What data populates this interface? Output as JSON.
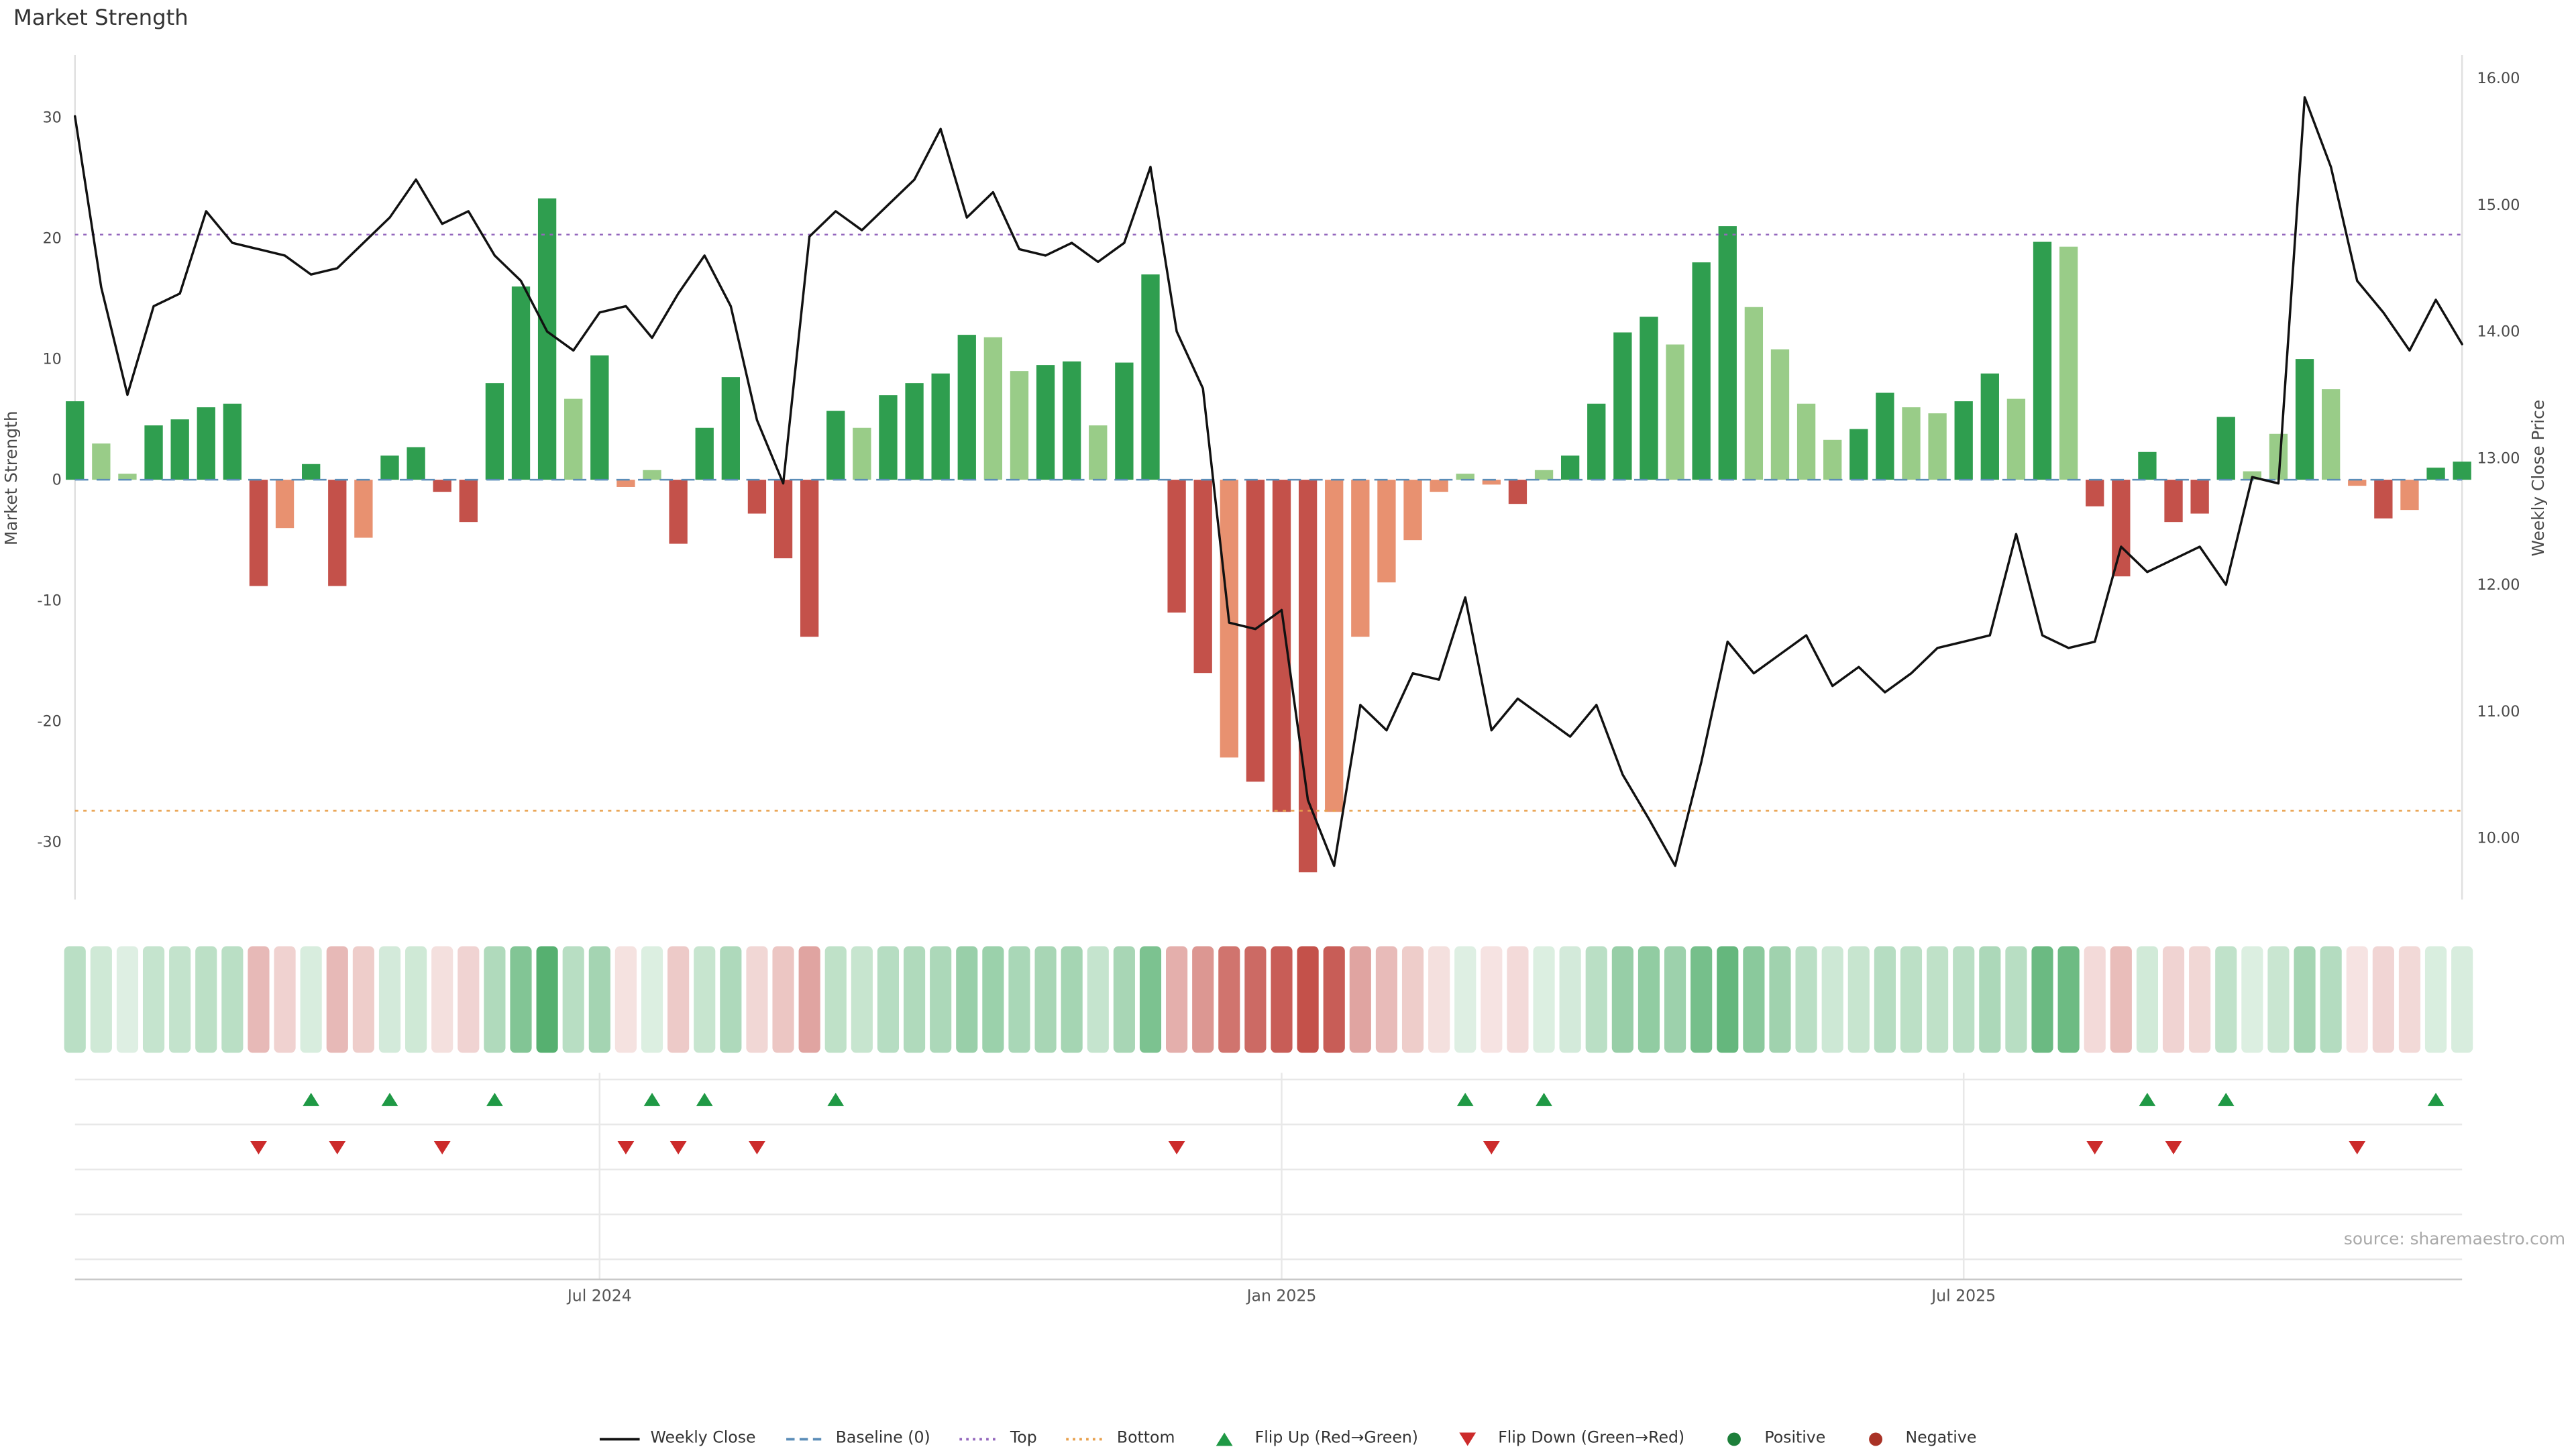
{
  "title": "Market Strength",
  "source_note": "source: sharemaestro.com",
  "axes": {
    "left": {
      "label": "Market Strength",
      "ticks": [
        30,
        20,
        10,
        0,
        -10,
        -20,
        -30
      ],
      "range": [
        -35.2,
        33.2
      ]
    },
    "right": {
      "label": "Weekly Close Price",
      "ticks": [
        "16.00",
        "15.00",
        "14.00",
        "13.00",
        "12.00",
        "11.00",
        "10.00"
      ],
      "range": [
        9.47,
        16.17
      ]
    },
    "x": {
      "weeks": 92,
      "ticks": [
        {
          "index": 20,
          "label": "Jul 2024"
        },
        {
          "index": 46,
          "label": "Jan 2025"
        },
        {
          "index": 72,
          "label": "Jul 2025"
        }
      ]
    }
  },
  "colors": {
    "dark_green": "#2f9e4f",
    "light_green": "#99cc88",
    "dark_red": "#c4514a",
    "light_red": "#e89170",
    "line": "#111111",
    "baseline": "#5b8db8",
    "top": "#9467bd",
    "bottom": "#e8a04c",
    "flip_up": "#1f9945",
    "flip_down": "#cc2b2b",
    "positive_dot": "#1d7f3a",
    "negative_dot": "#a93226",
    "grid": "#e8e8e8",
    "axis_line": "#c9c9c9",
    "axis_text": "#4a4a4a",
    "source_text": "#a9a9a9"
  },
  "legend": [
    {
      "label": "Weekly Close",
      "swatch": "line",
      "color": "#111111"
    },
    {
      "label": "Baseline (0)",
      "swatch": "dashed-line",
      "color": "#5b8db8"
    },
    {
      "label": "Top",
      "swatch": "dotted-line",
      "color": "#9467bd"
    },
    {
      "label": "Bottom",
      "swatch": "dotted-line",
      "color": "#e8a04c"
    },
    {
      "label": "Flip Up (Red→Green)",
      "swatch": "triangle-up",
      "color": "#1f9945"
    },
    {
      "label": "Flip Down (Green→Red)",
      "swatch": "triangle-down",
      "color": "#cc2b2b"
    },
    {
      "label": "Positive",
      "swatch": "circle",
      "color": "#1d7f3a"
    },
    {
      "label": "Negative",
      "swatch": "circle",
      "color": "#a93226"
    }
  ],
  "chart_data": [
    {
      "type": "bar",
      "name": "Market Strength",
      "axis": "left",
      "ylabel": "Market Strength",
      "ylim": [
        -35.2,
        33.2
      ],
      "grid": false,
      "x_tick_labels": [
        {
          "index": 20,
          "label": "Jul 2024"
        },
        {
          "index": 46,
          "label": "Jan 2025"
        },
        {
          "index": 72,
          "label": "Jul 2025"
        }
      ],
      "reference_lines": [
        {
          "name": "Baseline (0)",
          "value": 0,
          "style": "dashed",
          "color": "#5b8db8"
        },
        {
          "name": "Top",
          "value": 20.3,
          "style": "dotted",
          "color": "#9467bd"
        },
        {
          "name": "Bottom",
          "value": -27.4,
          "style": "dotted",
          "color": "#e8a04c"
        }
      ],
      "shade_key": {
        "dg": "dark green (strong positive)",
        "lg": "light green (weaker positive)",
        "dr": "dark red (strong negative)",
        "lr": "light red / salmon (weaker negative)"
      },
      "values": [
        6.5,
        3.0,
        0.5,
        4.5,
        5.0,
        6.0,
        6.3,
        -8.8,
        -4.0,
        1.3,
        -8.8,
        -4.8,
        2.0,
        2.7,
        -1.0,
        -3.5,
        8.0,
        16.0,
        23.3,
        6.7,
        10.3,
        -0.6,
        0.8,
        -5.3,
        4.3,
        8.5,
        -2.8,
        -6.5,
        -13.0,
        5.7,
        4.3,
        7.0,
        8.0,
        8.8,
        12.0,
        11.8,
        9.0,
        9.5,
        9.8,
        4.5,
        9.7,
        17.0,
        -11.0,
        -16.0,
        -23.0,
        -25.0,
        -27.5,
        -32.5,
        -27.5,
        -13.0,
        -8.5,
        -5.0,
        -1.0,
        0.5,
        -0.4,
        -2.0,
        0.8,
        2.0,
        6.3,
        12.2,
        13.5,
        11.2,
        18.0,
        21.0,
        14.3,
        10.8,
        6.3,
        3.3,
        4.2,
        7.2,
        6.0,
        5.5,
        6.5,
        8.8,
        6.7,
        19.7,
        19.3,
        -2.2,
        -8.0,
        2.3,
        -3.5,
        -2.8,
        5.2,
        0.7,
        3.8,
        10.0,
        7.5,
        -0.5,
        -3.2,
        -2.5,
        1.0,
        1.5
      ],
      "shades": [
        "dg",
        "lg",
        "lg",
        "dg",
        "dg",
        "dg",
        "dg",
        "dr",
        "lr",
        "dg",
        "dr",
        "lr",
        "dg",
        "dg",
        "dr",
        "dr",
        "dg",
        "dg",
        "dg",
        "lg",
        "dg",
        "lr",
        "lg",
        "dr",
        "dg",
        "dg",
        "dr",
        "dr",
        "dr",
        "dg",
        "lg",
        "dg",
        "dg",
        "dg",
        "dg",
        "lg",
        "lg",
        "dg",
        "dg",
        "lg",
        "dg",
        "dg",
        "dr",
        "dr",
        "lr",
        "dr",
        "dr",
        "dr",
        "lr",
        "lr",
        "lr",
        "lr",
        "lr",
        "lg",
        "lr",
        "dr",
        "lg",
        "dg",
        "dg",
        "dg",
        "dg",
        "lg",
        "dg",
        "dg",
        "lg",
        "lg",
        "lg",
        "lg",
        "dg",
        "dg",
        "lg",
        "lg",
        "dg",
        "dg",
        "lg",
        "dg",
        "lg",
        "dr",
        "dr",
        "dg",
        "dr",
        "dr",
        "dg",
        "lg",
        "lg",
        "dg",
        "lg",
        "lr",
        "dr",
        "lr",
        "dg",
        "dg"
      ]
    },
    {
      "type": "line",
      "name": "Weekly Close",
      "axis": "right",
      "ylabel": "Weekly Close Price",
      "ylim": [
        9.47,
        16.17
      ],
      "values": [
        15.7,
        14.35,
        13.5,
        14.2,
        14.3,
        14.95,
        14.7,
        14.65,
        14.6,
        14.45,
        14.5,
        14.7,
        14.9,
        15.2,
        14.85,
        14.95,
        14.6,
        14.4,
        14.0,
        13.85,
        14.15,
        14.2,
        13.95,
        14.3,
        14.6,
        14.2,
        13.3,
        12.8,
        14.75,
        14.95,
        14.8,
        15.0,
        15.2,
        15.6,
        14.9,
        15.1,
        14.65,
        14.6,
        14.7,
        14.55,
        14.7,
        15.3,
        14.0,
        13.55,
        11.7,
        11.65,
        11.8,
        10.3,
        9.78,
        11.05,
        10.85,
        11.3,
        11.25,
        11.9,
        10.85,
        11.1,
        10.95,
        10.8,
        11.05,
        10.5,
        10.15,
        9.78,
        10.6,
        11.55,
        11.3,
        11.45,
        11.6,
        11.2,
        11.35,
        11.15,
        11.3,
        11.5,
        11.55,
        11.6,
        12.4,
        11.6,
        11.5,
        11.55,
        12.3,
        12.1,
        12.2,
        12.3,
        12.0,
        12.85,
        12.8,
        15.85,
        15.3,
        14.4,
        14.15,
        13.85,
        14.25,
        13.9
      ]
    },
    {
      "type": "heatmap",
      "name": "Weekly strength color strip",
      "rows": 1,
      "encoding": "green = positive week, red = negative week, color intensity proportional to |Market Strength|",
      "values_source": "Market Strength bar values"
    },
    {
      "type": "scatter",
      "name": "Flip markers",
      "flip_up_label": "Flip Up (Red→Green)",
      "flip_down_label": "Flip Down (Green→Red)",
      "flip_up_weeks": [
        9,
        12,
        16,
        22,
        24,
        29,
        53,
        56,
        79,
        82,
        90
      ],
      "flip_down_weeks": [
        7,
        10,
        14,
        21,
        23,
        26,
        42,
        54,
        77,
        80,
        87
      ]
    }
  ]
}
